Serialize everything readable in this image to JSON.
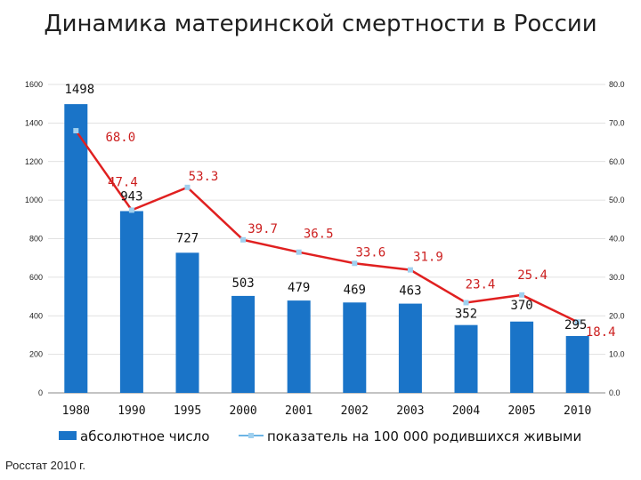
{
  "title": "Динамика материнской смертности в России",
  "source": "Росстат 2010 г.",
  "colors": {
    "bar": "#1a74c8",
    "line": "#e02020",
    "marker": "#9fd0ef"
  },
  "chart_data": {
    "type": "bar",
    "categories": [
      "1980",
      "1990",
      "1995",
      "2000",
      "2001",
      "2002",
      "2003",
      "2004",
      "2005",
      "2010"
    ],
    "series": [
      {
        "name": "абсолютное число",
        "type": "bar",
        "axis": "left",
        "values": [
          1498,
          943,
          727,
          503,
          479,
          469,
          463,
          352,
          370,
          295
        ],
        "labels": [
          "1498",
          "943",
          "727",
          "503",
          "479",
          "469",
          "463",
          "352",
          "370",
          "295"
        ]
      },
      {
        "name": "показатель на 100 000 родившихся живыми",
        "type": "line",
        "axis": "right",
        "values": [
          68.0,
          47.4,
          53.3,
          39.7,
          36.5,
          33.6,
          31.9,
          23.4,
          25.4,
          18.4
        ],
        "labels": [
          "68.0",
          "47.4",
          "53.3",
          "39.7",
          "36.5",
          "33.6",
          "31.9",
          "23.4",
          "25.4",
          "18.4"
        ]
      }
    ],
    "y_left": {
      "min": 0,
      "max": 1600,
      "ticks": [
        "0",
        "200",
        "400",
        "600",
        "800",
        "1000",
        "1200",
        "1400",
        "1600"
      ]
    },
    "y_right": {
      "min": 0,
      "max": 80,
      "ticks": [
        "0.0",
        "10.0",
        "20.0",
        "30.0",
        "40.0",
        "50.0",
        "60.0",
        "70.0",
        "80.0"
      ]
    },
    "grid": true,
    "legend": "bottom"
  }
}
